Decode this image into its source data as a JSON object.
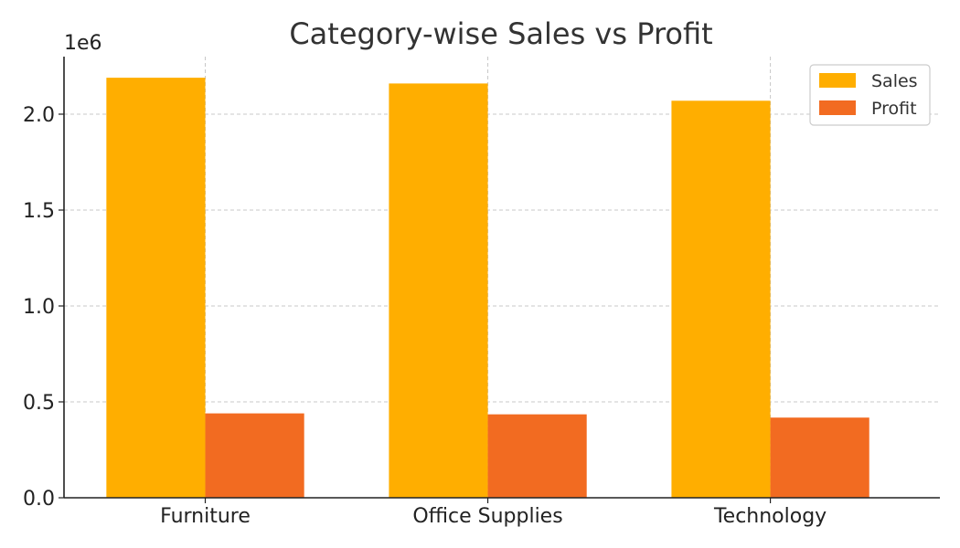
{
  "chart_data": {
    "type": "bar",
    "title": "Category-wise Sales vs Profit",
    "xlabel": "",
    "ylabel": "",
    "y_offset_label": "1e6",
    "categories": [
      "Furniture",
      "Office Supplies",
      "Technology"
    ],
    "series": [
      {
        "name": "Sales",
        "color": "#FFAE00",
        "values": [
          2190000,
          2160000,
          2070000
        ]
      },
      {
        "name": "Profit",
        "color": "#F26B21",
        "values": [
          440000,
          435000,
          418000
        ]
      }
    ],
    "ylim": [
      0,
      2300000
    ],
    "yticks": [
      0,
      500000,
      1000000,
      1500000,
      2000000
    ],
    "ytick_labels": [
      "0.0",
      "0.5",
      "1.0",
      "1.5",
      "2.0"
    ],
    "grid": true,
    "legend_position": "top-right"
  }
}
